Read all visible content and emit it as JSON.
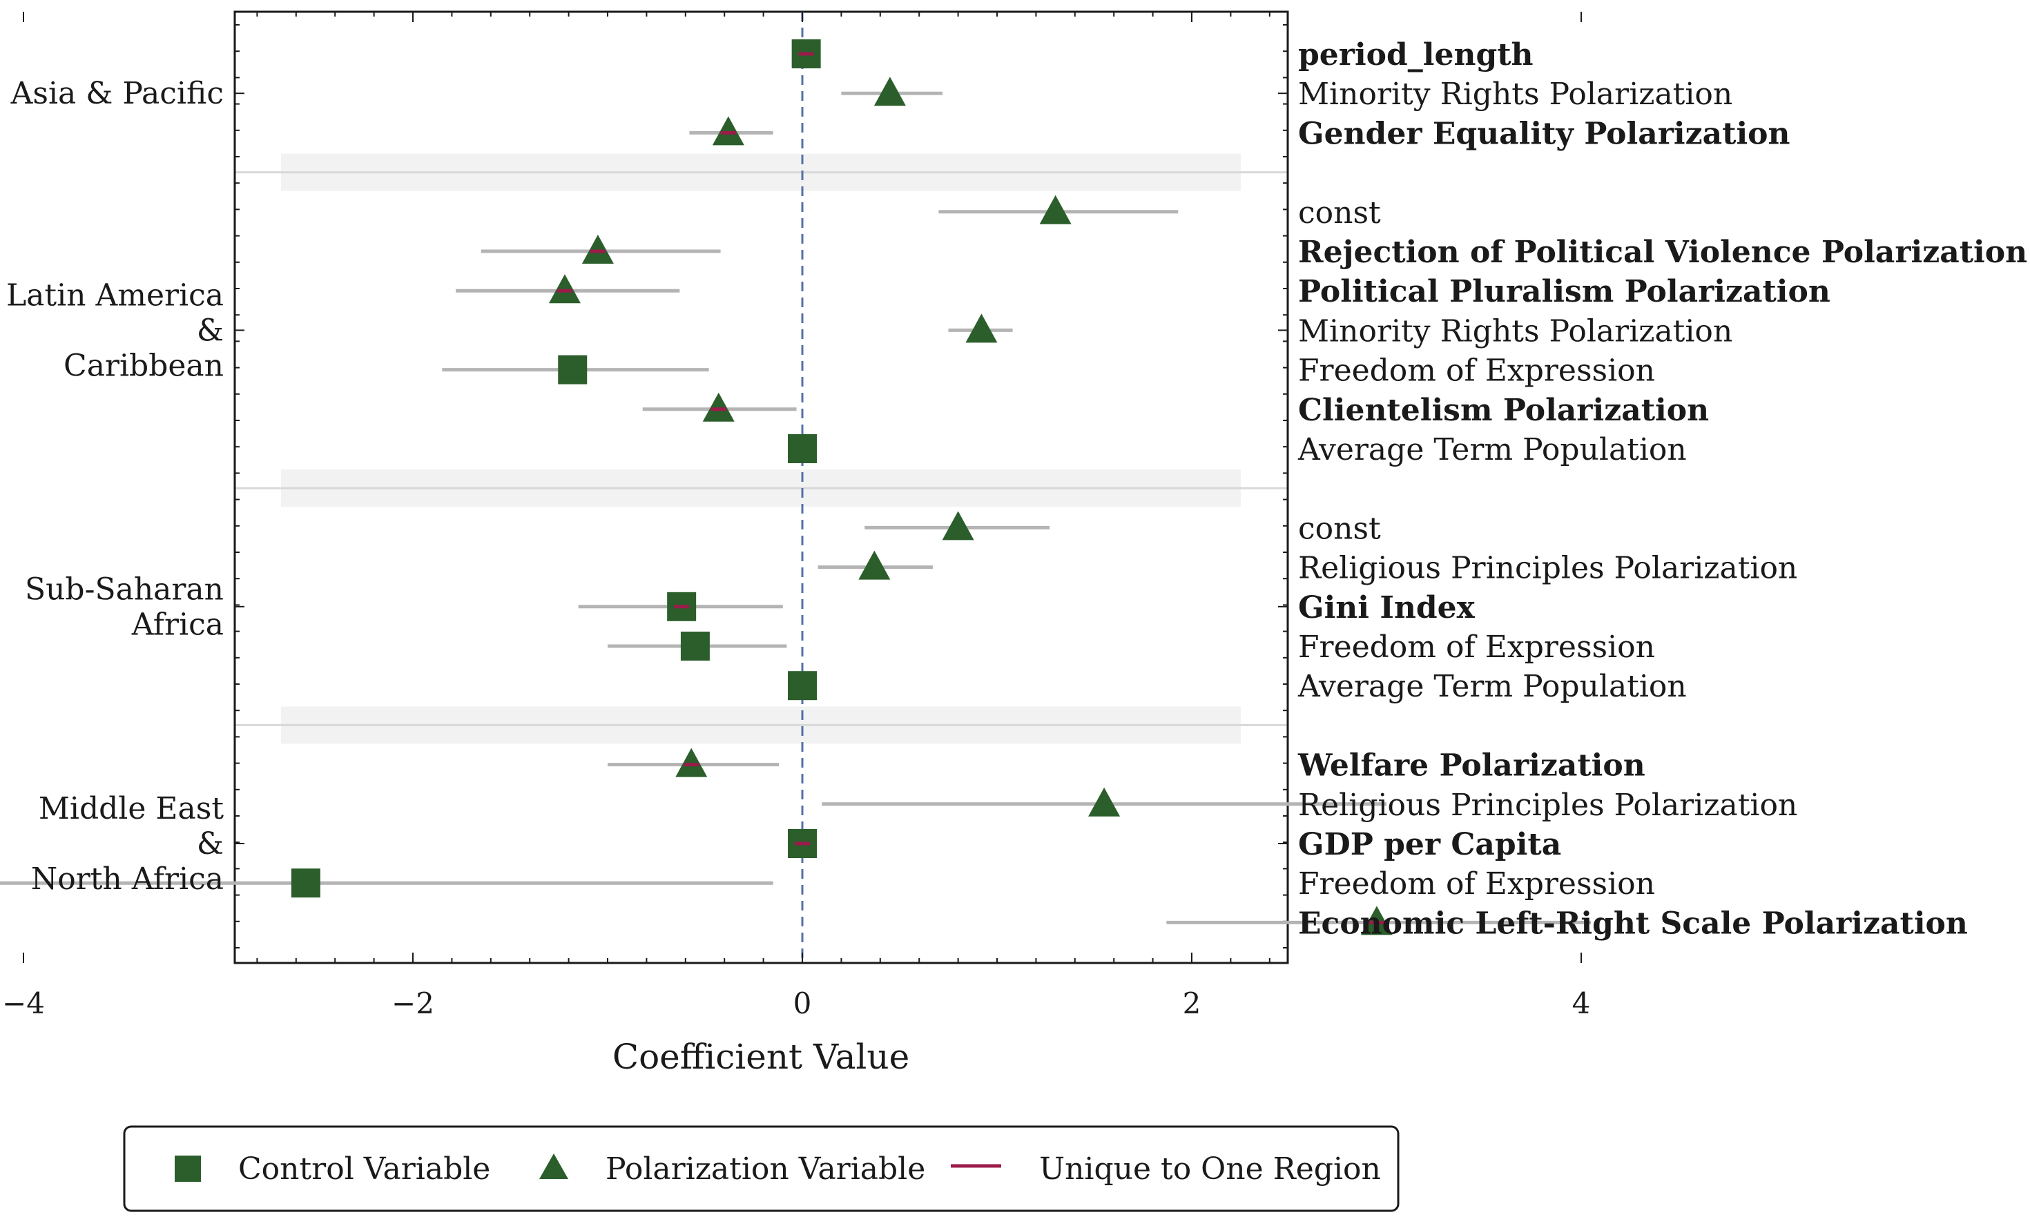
{
  "colors": {
    "marker": "#2b5e2b",
    "unique": "#9b1b4a",
    "ci": "#b4b4b4",
    "zero_line": "#5470a6",
    "separator_band": "#f2f2f2",
    "separator_line": "#d8d8d8"
  },
  "chart_data": {
    "type": "scatter",
    "title": "",
    "xlabel": "Coefficient Value",
    "ylabel": "",
    "xlim": [
      -5.8,
      5.0
    ],
    "xticks": [
      -4,
      -2,
      0,
      2,
      4
    ],
    "xtick_labels": [
      "−4",
      "−2",
      "0",
      "2",
      "4"
    ],
    "reference_line_x": 0,
    "groups": [
      {
        "region": [
          "Asia & Pacific"
        ],
        "rows": [
          {
            "label": "period_length",
            "bold": true,
            "marker": "square",
            "coef": 0.02,
            "ci": [
              -0.05,
              0.09
            ],
            "unique": true
          },
          {
            "label": "Minority Rights Polarization",
            "bold": false,
            "marker": "triangle",
            "coef": 0.45,
            "ci": [
              0.2,
              0.72
            ],
            "unique": false
          },
          {
            "label": "Gender Equality Polarization",
            "bold": true,
            "marker": "triangle",
            "coef": -0.38,
            "ci": [
              -0.58,
              -0.15
            ],
            "unique": true
          }
        ]
      },
      {
        "region": [
          "Latin America",
          "&",
          "Caribbean"
        ],
        "rows": [
          {
            "label": "const",
            "bold": false,
            "marker": "triangle",
            "coef": 1.3,
            "ci": [
              0.7,
              1.93
            ],
            "unique": false
          },
          {
            "label": "Rejection of Political Violence Polarization",
            "bold": true,
            "marker": "triangle",
            "coef": -1.05,
            "ci": [
              -1.65,
              -0.42
            ],
            "unique": true
          },
          {
            "label": "Political Pluralism Polarization",
            "bold": true,
            "marker": "triangle",
            "coef": -1.22,
            "ci": [
              -1.78,
              -0.63
            ],
            "unique": true
          },
          {
            "label": "Minority Rights Polarization",
            "bold": false,
            "marker": "triangle",
            "coef": 0.92,
            "ci": [
              0.75,
              1.08
            ],
            "unique": false
          },
          {
            "label": "Freedom of Expression",
            "bold": false,
            "marker": "square",
            "coef": -1.18,
            "ci": [
              -1.85,
              -0.48
            ],
            "unique": false
          },
          {
            "label": "Clientelism Polarization",
            "bold": true,
            "marker": "triangle",
            "coef": -0.43,
            "ci": [
              -0.82,
              -0.03
            ],
            "unique": true
          },
          {
            "label": "Average Term Population",
            "bold": false,
            "marker": "square",
            "coef": 0.0,
            "ci": [
              -0.03,
              0.03
            ],
            "unique": false
          }
        ]
      },
      {
        "region": [
          "Sub-Saharan",
          "Africa"
        ],
        "rows": [
          {
            "label": "const",
            "bold": false,
            "marker": "triangle",
            "coef": 0.8,
            "ci": [
              0.32,
              1.27
            ],
            "unique": false
          },
          {
            "label": "Religious Principles Polarization",
            "bold": false,
            "marker": "triangle",
            "coef": 0.37,
            "ci": [
              0.08,
              0.67
            ],
            "unique": false
          },
          {
            "label": "Gini Index",
            "bold": true,
            "marker": "square",
            "coef": -0.62,
            "ci": [
              -1.15,
              -0.1
            ],
            "unique": true
          },
          {
            "label": "Freedom of Expression",
            "bold": false,
            "marker": "square",
            "coef": -0.55,
            "ci": [
              -1.0,
              -0.08
            ],
            "unique": false
          },
          {
            "label": "Average Term Population",
            "bold": false,
            "marker": "square",
            "coef": 0.0,
            "ci": [
              -0.03,
              0.03
            ],
            "unique": false
          }
        ]
      },
      {
        "region": [
          "Middle East",
          "&",
          "North Africa"
        ],
        "rows": [
          {
            "label": "Welfare Polarization",
            "bold": true,
            "marker": "triangle",
            "coef": -0.57,
            "ci": [
              -1.0,
              -0.12
            ],
            "unique": true
          },
          {
            "label": "Religious Principles Polarization",
            "bold": false,
            "marker": "triangle",
            "coef": 1.55,
            "ci": [
              0.1,
              3.0
            ],
            "unique": false
          },
          {
            "label": "GDP per Capita",
            "bold": true,
            "marker": "square",
            "coef": 0.0,
            "ci": [
              -0.05,
              0.05
            ],
            "unique": true
          },
          {
            "label": "Freedom of Expression",
            "bold": false,
            "marker": "square",
            "coef": -2.55,
            "ci": [
              -4.92,
              -0.15
            ],
            "unique": false
          },
          {
            "label": "Economic Left-Right Scale Polarization",
            "bold": true,
            "marker": "triangle",
            "coef": 2.95,
            "ci": [
              1.87,
              4.05
            ],
            "unique": true
          }
        ]
      }
    ],
    "legend": {
      "position": "bottom",
      "entries": [
        {
          "label": "Control Variable",
          "symbol": "square"
        },
        {
          "label": "Polarization Variable",
          "symbol": "triangle"
        },
        {
          "label": "Unique to One Region",
          "symbol": "line"
        }
      ]
    }
  }
}
